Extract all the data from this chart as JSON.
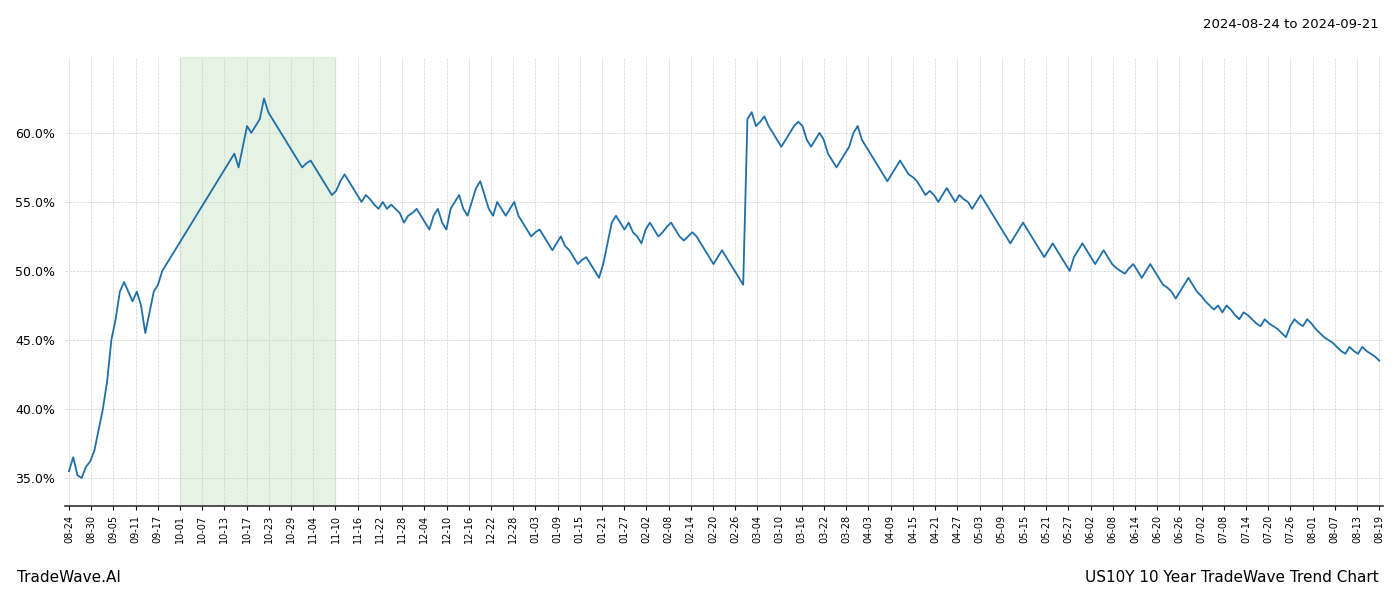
{
  "title_top_right": "2024-08-24 to 2024-09-21",
  "title_bottom_left": "TradeWave.AI",
  "title_bottom_right": "US10Y 10 Year TradeWave Trend Chart",
  "line_color": "#1f6fa8",
  "line_width": 1.3,
  "bg_color": "#ffffff",
  "grid_color": "#c8c8c8",
  "grid_linestyle": "--",
  "highlight_color": "#d6ecd2",
  "highlight_alpha": 0.6,
  "ylim_min": 33.0,
  "ylim_max": 65.5,
  "yticks": [
    35.0,
    40.0,
    45.0,
    50.0,
    55.0,
    60.0
  ],
  "highlight_xstart": 5,
  "highlight_xend": 12,
  "x_labels": [
    "08-24",
    "08-30",
    "09-05",
    "09-11",
    "09-17",
    "10-01",
    "10-07",
    "10-13",
    "10-17",
    "10-23",
    "10-29",
    "11-04",
    "11-10",
    "11-16",
    "11-22",
    "11-28",
    "12-04",
    "12-10",
    "12-16",
    "12-22",
    "12-28",
    "01-03",
    "01-09",
    "01-15",
    "01-21",
    "01-27",
    "02-02",
    "02-08",
    "02-14",
    "02-20",
    "02-26",
    "03-04",
    "03-10",
    "03-16",
    "03-22",
    "03-28",
    "04-03",
    "04-09",
    "04-15",
    "04-21",
    "04-27",
    "05-03",
    "05-09",
    "05-15",
    "05-21",
    "05-27",
    "06-02",
    "06-08",
    "06-14",
    "06-20",
    "06-26",
    "07-02",
    "07-08",
    "07-14",
    "07-20",
    "07-26",
    "08-01",
    "08-07",
    "08-13",
    "08-19"
  ],
  "values": [
    35.5,
    36.5,
    35.2,
    35.0,
    35.8,
    36.2,
    37.0,
    38.5,
    40.0,
    42.0,
    45.0,
    46.5,
    48.5,
    49.2,
    48.5,
    47.8,
    48.5,
    47.5,
    45.5,
    47.0,
    48.5,
    49.0,
    50.0,
    50.5,
    51.0,
    51.5,
    52.0,
    52.5,
    53.0,
    53.5,
    54.0,
    54.5,
    55.0,
    55.5,
    56.0,
    56.5,
    57.0,
    57.5,
    58.0,
    58.5,
    57.5,
    59.0,
    60.5,
    60.0,
    60.5,
    61.0,
    62.5,
    61.5,
    61.0,
    60.5,
    60.0,
    59.5,
    59.0,
    58.5,
    58.0,
    57.5,
    57.8,
    58.0,
    57.5,
    57.0,
    56.5,
    56.0,
    55.5,
    55.8,
    56.5,
    57.0,
    56.5,
    56.0,
    55.5,
    55.0,
    55.5,
    55.2,
    54.8,
    54.5,
    55.0,
    54.5,
    54.8,
    54.5,
    54.2,
    53.5,
    54.0,
    54.2,
    54.5,
    54.0,
    53.5,
    53.0,
    54.0,
    54.5,
    53.5,
    53.0,
    54.5,
    55.0,
    55.5,
    54.5,
    54.0,
    55.0,
    56.0,
    56.5,
    55.5,
    54.5,
    54.0,
    55.0,
    54.5,
    54.0,
    54.5,
    55.0,
    54.0,
    53.5,
    53.0,
    52.5,
    52.8,
    53.0,
    52.5,
    52.0,
    51.5,
    52.0,
    52.5,
    51.8,
    51.5,
    51.0,
    50.5,
    50.8,
    51.0,
    50.5,
    50.0,
    49.5,
    50.5,
    52.0,
    53.5,
    54.0,
    53.5,
    53.0,
    53.5,
    52.8,
    52.5,
    52.0,
    53.0,
    53.5,
    53.0,
    52.5,
    52.8,
    53.2,
    53.5,
    53.0,
    52.5,
    52.2,
    52.5,
    52.8,
    52.5,
    52.0,
    51.5,
    51.0,
    50.5,
    51.0,
    51.5,
    51.0,
    50.5,
    50.0,
    49.5,
    49.0,
    61.0,
    61.5,
    60.5,
    60.8,
    61.2,
    60.5,
    60.0,
    59.5,
    59.0,
    59.5,
    60.0,
    60.5,
    60.8,
    60.5,
    59.5,
    59.0,
    59.5,
    60.0,
    59.5,
    58.5,
    58.0,
    57.5,
    58.0,
    58.5,
    59.0,
    60.0,
    60.5,
    59.5,
    59.0,
    58.5,
    58.0,
    57.5,
    57.0,
    56.5,
    57.0,
    57.5,
    58.0,
    57.5,
    57.0,
    56.8,
    56.5,
    56.0,
    55.5,
    55.8,
    55.5,
    55.0,
    55.5,
    56.0,
    55.5,
    55.0,
    55.5,
    55.2,
    55.0,
    54.5,
    55.0,
    55.5,
    55.0,
    54.5,
    54.0,
    53.5,
    53.0,
    52.5,
    52.0,
    52.5,
    53.0,
    53.5,
    53.0,
    52.5,
    52.0,
    51.5,
    51.0,
    51.5,
    52.0,
    51.5,
    51.0,
    50.5,
    50.0,
    51.0,
    51.5,
    52.0,
    51.5,
    51.0,
    50.5,
    51.0,
    51.5,
    51.0,
    50.5,
    50.2,
    50.0,
    49.8,
    50.2,
    50.5,
    50.0,
    49.5,
    50.0,
    50.5,
    50.0,
    49.5,
    49.0,
    48.8,
    48.5,
    48.0,
    48.5,
    49.0,
    49.5,
    49.0,
    48.5,
    48.2,
    47.8,
    47.5,
    47.2,
    47.5,
    47.0,
    47.5,
    47.2,
    46.8,
    46.5,
    47.0,
    46.8,
    46.5,
    46.2,
    46.0,
    46.5,
    46.2,
    46.0,
    45.8,
    45.5,
    45.2,
    46.0,
    46.5,
    46.2,
    46.0,
    46.5,
    46.2,
    45.8,
    45.5,
    45.2,
    45.0,
    44.8,
    44.5,
    44.2,
    44.0,
    44.5,
    44.2,
    44.0,
    44.5,
    44.2,
    44.0,
    43.8,
    43.5
  ]
}
